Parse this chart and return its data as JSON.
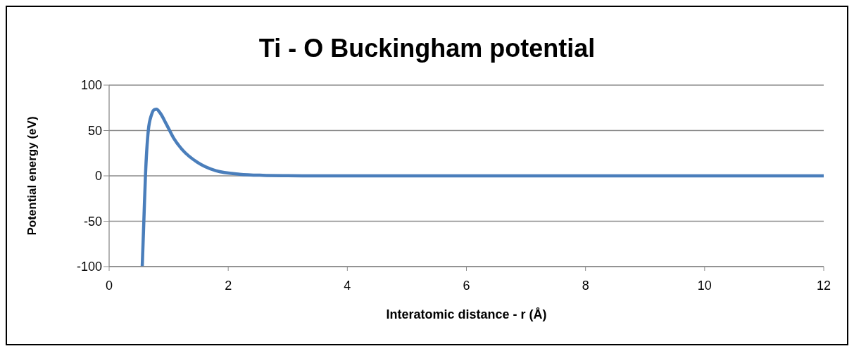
{
  "chart_data": {
    "type": "line",
    "title": "Ti - O Buckingham potential",
    "xlabel": "Interatomic distance -  r (Å)",
    "ylabel": "Potential energy (eV)",
    "x": [
      0.556,
      0.583,
      0.61,
      0.658,
      0.71,
      0.76,
      0.795,
      0.85,
      0.965,
      1.08,
      1.24,
      1.48,
      1.79,
      2.19,
      2.58,
      3.0,
      3.5,
      4,
      6,
      8,
      10,
      12
    ],
    "series": [
      {
        "color": "#4a7ebb",
        "values": [
          -100,
          -50,
          0,
          50,
          67,
          73,
          73.4,
          70,
          56.5,
          42,
          28,
          15,
          5.7,
          1.8,
          0.6,
          0.2,
          0,
          0,
          0,
          0,
          0,
          0
        ]
      }
    ],
    "xlim": [
      0,
      12
    ],
    "xticks": [
      0,
      2,
      4,
      6,
      8,
      10,
      12
    ],
    "ylim": [
      -100,
      100
    ],
    "yticks": [
      -100,
      -50,
      0,
      50,
      100
    ],
    "grid": "y",
    "legend": false
  }
}
